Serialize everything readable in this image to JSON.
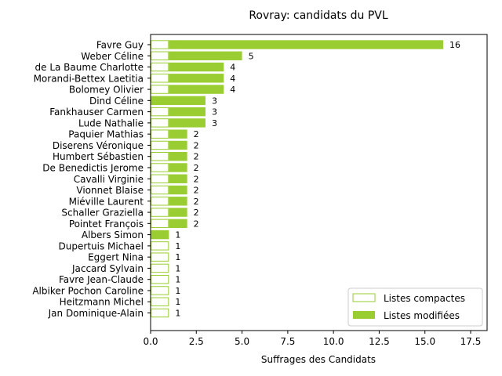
{
  "chart_data": {
    "type": "bar",
    "orientation": "horizontal",
    "title": "Rovray: candidats du PVL",
    "xlabel": "Suffrages des Candidats",
    "ylabel": "",
    "xlim": [
      0,
      18.4
    ],
    "xticks": [
      "0.0",
      "2.5",
      "5.0",
      "7.5",
      "10.0",
      "12.5",
      "15.0",
      "17.5"
    ],
    "xtick_values": [
      0,
      2.5,
      5,
      7.5,
      10,
      12.5,
      15,
      17.5
    ],
    "categories": [
      "Favre Guy",
      "Weber Céline",
      "de La Baume Charlotte",
      "Morandi-Bettex Laetitia",
      "Bolomey Olivier",
      "Dind Céline",
      "Fankhauser Carmen",
      "Lude Nathalie",
      "Paquier Mathias",
      "Diserens Véronique",
      "Humbert Sébastien",
      "De Benedictis Jerome",
      "Cavalli Virginie",
      "Vionnet Blaise",
      "Miéville Laurent",
      "Schaller Graziella",
      "Pointet François",
      "Albers Simon",
      "Dupertuis Michael",
      "Eggert Nina",
      "Jaccard Sylvain",
      "Favre Jean-Claude",
      "Albiker Pochon Caroline",
      "Heitzmann Michel",
      "Jan Dominique-Alain"
    ],
    "series": [
      {
        "name": "Listes compactes",
        "values": [
          1,
          1,
          1,
          1,
          1,
          0,
          1,
          1,
          1,
          1,
          1,
          1,
          1,
          1,
          1,
          1,
          1,
          0,
          1,
          1,
          1,
          1,
          1,
          1,
          1
        ],
        "color": "#9acd32",
        "style": "outline"
      },
      {
        "name": "Listes modifiées",
        "values": [
          15,
          4,
          3,
          3,
          3,
          3,
          2,
          2,
          1,
          1,
          1,
          1,
          1,
          1,
          1,
          1,
          1,
          1,
          0,
          0,
          0,
          0,
          0,
          0,
          0
        ],
        "color": "#9acd32",
        "style": "filled"
      }
    ],
    "totals": [
      "16",
      "5",
      "4",
      "4",
      "4",
      "3",
      "3",
      "3",
      "2",
      "2",
      "2",
      "2",
      "2",
      "2",
      "2",
      "2",
      "2",
      "1",
      "1",
      "1",
      "1",
      "1",
      "1",
      "1",
      "1"
    ],
    "stacked": true,
    "legend_position": "lower-right"
  }
}
